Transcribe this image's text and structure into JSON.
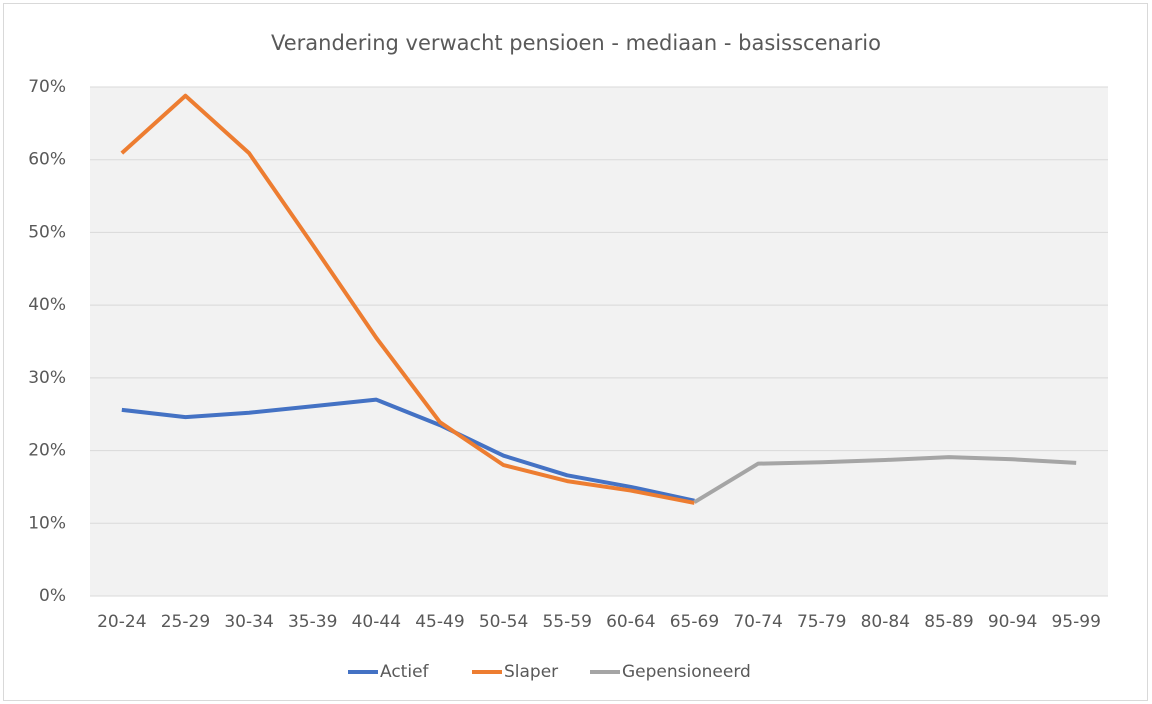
{
  "chart_data": {
    "type": "line",
    "title": "Verandering verwacht pensioen - mediaan - basisscenario",
    "categories": [
      "20-24",
      "25-29",
      "30-34",
      "35-39",
      "40-44",
      "45-49",
      "50-54",
      "55-59",
      "60-64",
      "65-69",
      "70-74",
      "75-79",
      "80-84",
      "85-89",
      "90-94",
      "95-99"
    ],
    "series": [
      {
        "name": "Actief",
        "color": "#4472c4",
        "values": [
          25.6,
          24.6,
          25.2,
          26.1,
          27.0,
          23.5,
          19.3,
          16.6,
          15.0,
          13.1,
          null,
          null,
          null,
          null,
          null,
          null
        ]
      },
      {
        "name": "Slaper",
        "color": "#ed7d31",
        "values": [
          60.9,
          68.8,
          60.9,
          48.3,
          35.5,
          23.9,
          18.0,
          15.8,
          14.5,
          12.8,
          null,
          null,
          null,
          null,
          null,
          null
        ]
      },
      {
        "name": "Gepensioneerd",
        "color": "#a5a5a5",
        "values": [
          null,
          null,
          null,
          null,
          null,
          null,
          null,
          null,
          null,
          12.9,
          18.2,
          18.4,
          18.7,
          19.1,
          18.8,
          18.3
        ]
      }
    ],
    "ylim": [
      0,
      70
    ],
    "yticks": [
      {
        "value": 0,
        "label": "0%"
      },
      {
        "value": 10,
        "label": "10%"
      },
      {
        "value": 20,
        "label": "20%"
      },
      {
        "value": 30,
        "label": "30%"
      },
      {
        "value": 40,
        "label": "40%"
      },
      {
        "value": 50,
        "label": "50%"
      },
      {
        "value": 60,
        "label": "60%"
      },
      {
        "value": 70,
        "label": "70%"
      }
    ],
    "grid": true,
    "legend": "bottom"
  }
}
